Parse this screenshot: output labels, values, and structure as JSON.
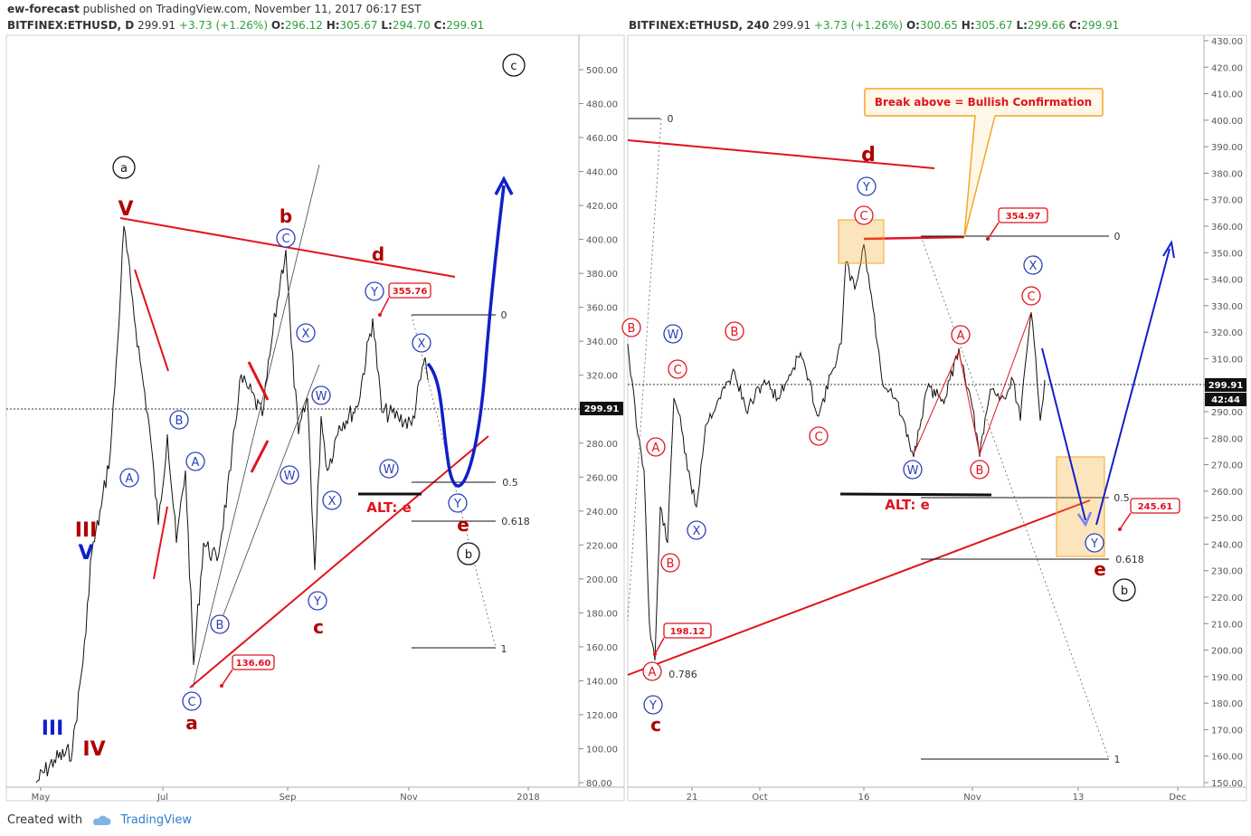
{
  "header": {
    "author": "ew-forecast",
    "published_text": "published on TradingView.com, November 11, 2017 06:17 EST"
  },
  "left_chart": {
    "symbol": "BITFINEX:ETHUSD, D",
    "last": "299.91",
    "change": "+3.73 (+1.26%)",
    "o_label": "O:",
    "o": "296.12",
    "h_label": "H:",
    "h": "305.67",
    "l_label": "L:",
    "l": "294.70",
    "c_label": "C:",
    "c": "299.91",
    "price_tag": "299.91",
    "x_ticks": [
      "May",
      "Jul",
      "Sep",
      "Nov",
      "2018"
    ],
    "y_ticks": [
      "80.00",
      "100.00",
      "120.00",
      "140.00",
      "160.00",
      "180.00",
      "200.00",
      "220.00",
      "240.00",
      "260.00",
      "280.00",
      "300.00",
      "320.00",
      "340.00",
      "360.00",
      "380.00",
      "400.00",
      "420.00",
      "440.00",
      "460.00",
      "480.00",
      "500.00"
    ],
    "fib_labels": [
      "0",
      "0.5",
      "0.618",
      "1"
    ],
    "callouts": [
      "355.76",
      "136.60"
    ],
    "alt_label": "ALT: e",
    "wave_labels": {
      "circle_black": [
        "a",
        "c",
        "b"
      ],
      "red_letters": [
        "V",
        "b",
        "d",
        "c",
        "a",
        "e",
        "III",
        "IV"
      ],
      "blue_letters": [
        "V",
        "III"
      ],
      "blue_circles": [
        "A",
        "B",
        "A",
        "B",
        "C",
        "C",
        "X",
        "W",
        "W",
        "X",
        "Y",
        "Y",
        "X",
        "W",
        "Y"
      ]
    }
  },
  "right_chart": {
    "symbol": "BITFINEX:ETHUSD, 240",
    "last": "299.91",
    "change": "+3.73 (+1.26%)",
    "o_label": "O:",
    "o": "300.65",
    "h_label": "H:",
    "h": "305.67",
    "l_label": "L:",
    "l": "299.66",
    "c_label": "C:",
    "c": "299.91",
    "price_tag": "299.91",
    "time_tag": "42:44",
    "x_ticks": [
      "21",
      "Oct",
      "16",
      "Nov",
      "13",
      "Dec"
    ],
    "y_ticks": [
      "150.00",
      "160.00",
      "170.00",
      "180.00",
      "190.00",
      "200.00",
      "210.00",
      "220.00",
      "230.00",
      "240.00",
      "250.00",
      "260.00",
      "270.00",
      "280.00",
      "290.00",
      "300.00",
      "310.00",
      "320.00",
      "330.00",
      "340.00",
      "350.00",
      "360.00",
      "370.00",
      "380.00",
      "390.00",
      "400.00",
      "410.00",
      "420.00",
      "430.00"
    ],
    "fib_labels": [
      "0",
      "0",
      "0.5",
      "0.618",
      "0.786",
      "1"
    ],
    "callouts": [
      "354.97",
      "198.12",
      "245.61"
    ],
    "note": "Break above = Bullish Confirmation",
    "alt_label": "ALT: e",
    "wave_labels": {
      "circle_black": [
        "b"
      ],
      "red_letters": [
        "d",
        "c",
        "e"
      ],
      "red_circles": [
        "B",
        "C",
        "A",
        "B",
        "A",
        "C",
        "B",
        "C",
        "A",
        "B",
        "C"
      ],
      "blue_circles": [
        "W",
        "X",
        "Y",
        "W",
        "X",
        "Y",
        "Y"
      ]
    }
  },
  "footer": {
    "created_with": "Created with",
    "brand": "TradingView"
  },
  "colors": {
    "red": "#e0141e",
    "dark_red": "#b00000",
    "blue": "#1020c8",
    "circle_blue": "#2c3fb8",
    "green": "#2e9e3a",
    "orange": "#f5a623"
  }
}
